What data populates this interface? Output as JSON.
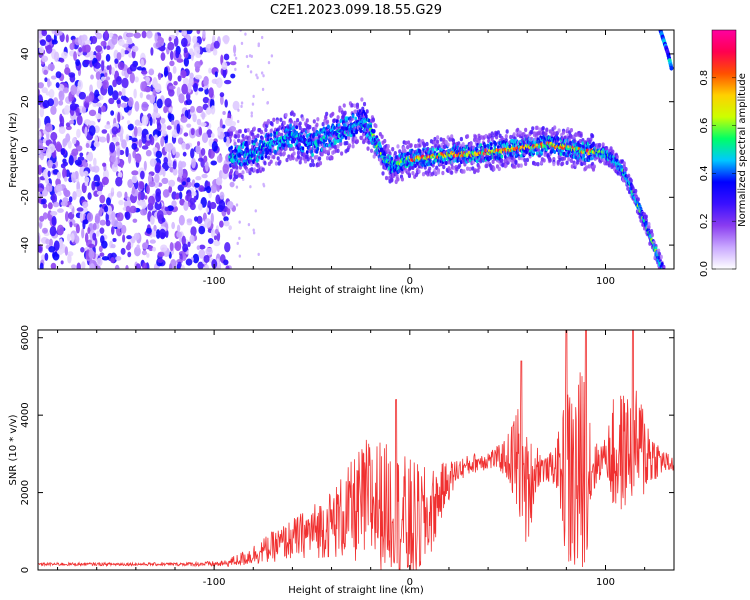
{
  "title": "C2E1.2023.099.18.55.G29",
  "chart_data": [
    {
      "type": "heatmap",
      "title": "",
      "xlabel": "Height of straight line (km)",
      "ylabel": "Frequency (Hz)",
      "xlim": [
        -190,
        135
      ],
      "ylim": [
        -50,
        50
      ],
      "xticks": [
        -100,
        0,
        100
      ],
      "yticks": [
        -40,
        -20,
        0,
        20,
        40
      ],
      "colorbar": {
        "label": "Normalized spectral amplitude",
        "range": [
          0,
          1
        ],
        "ticks": [
          "0.0",
          "0.2",
          "0.4",
          "0.6",
          "0.8"
        ],
        "colormap": [
          "#ffffff",
          "#c9a8ff",
          "#8a3cf0",
          "#3a10ff",
          "#0000ff",
          "#00c8ff",
          "#00ff66",
          "#ccff00",
          "#ffd000",
          "#ff5000",
          "#ff0050",
          "#ff00a0"
        ]
      },
      "noise_region_x": [
        -190,
        -92
      ],
      "ridge": {
        "x": [
          -92,
          -80,
          -70,
          -60,
          -50,
          -40,
          -30,
          -24,
          -20,
          -16,
          -12,
          -8,
          -4,
          0,
          10,
          20,
          30,
          40,
          50,
          60,
          70,
          80,
          90,
          96,
          100,
          104,
          110,
          115,
          120,
          125,
          130
        ],
        "y": [
          -3,
          -1,
          3,
          6,
          2,
          6,
          10,
          12,
          8,
          0,
          -5,
          -7,
          -5,
          -4,
          -3,
          -2,
          -2,
          -1,
          0,
          1,
          2,
          1,
          -1,
          -1,
          -2,
          -4,
          -10,
          -20,
          -30,
          -41,
          -52
        ]
      },
      "upper_branch": {
        "x": [
          128,
          130,
          132,
          134
        ],
        "y": [
          50,
          45,
          40,
          33
        ]
      }
    },
    {
      "type": "line",
      "title": "",
      "xlabel": "Height of straight line (km)",
      "ylabel": "SNR (10 * v/v)",
      "xlim": [
        -190,
        135
      ],
      "ylim": [
        0,
        6200
      ],
      "xticks": [
        -100,
        0,
        100
      ],
      "yticks": [
        0,
        2000,
        4000,
        6000
      ],
      "color": "#f03030",
      "envelope": {
        "x": [
          -190,
          -120,
          -95,
          -85,
          -70,
          -55,
          -40,
          -30,
          -20,
          -10,
          0,
          10,
          18,
          25,
          35,
          45,
          50,
          55,
          60,
          65,
          70,
          75,
          80,
          85,
          90,
          95,
          100,
          105,
          110,
          115,
          120,
          125,
          130,
          135
        ],
        "mean": [
          150,
          150,
          160,
          300,
          600,
          900,
          1200,
          1500,
          1800,
          1600,
          1100,
          1400,
          2200,
          2600,
          2800,
          2900,
          2900,
          2800,
          2000,
          2700,
          2600,
          2700,
          2400,
          2200,
          2800,
          2700,
          3000,
          2900,
          3100,
          3200,
          3100,
          2900,
          2800,
          2700
        ],
        "spread": [
          40,
          40,
          80,
          200,
          400,
          600,
          900,
          1300,
          1800,
          1600,
          1800,
          1200,
          600,
          300,
          250,
          300,
          600,
          1600,
          1500,
          600,
          300,
          600,
          2300,
          3000,
          2500,
          600,
          400,
          1800,
          1500,
          1500,
          1300,
          600,
          300,
          200
        ]
      },
      "peaks": [
        {
          "x": -7,
          "y": 4400
        },
        {
          "x": 57,
          "y": 5400
        },
        {
          "x": 80,
          "y": 6300
        },
        {
          "x": 90,
          "y": 6200
        },
        {
          "x": 114,
          "y": 6200
        }
      ]
    }
  ]
}
